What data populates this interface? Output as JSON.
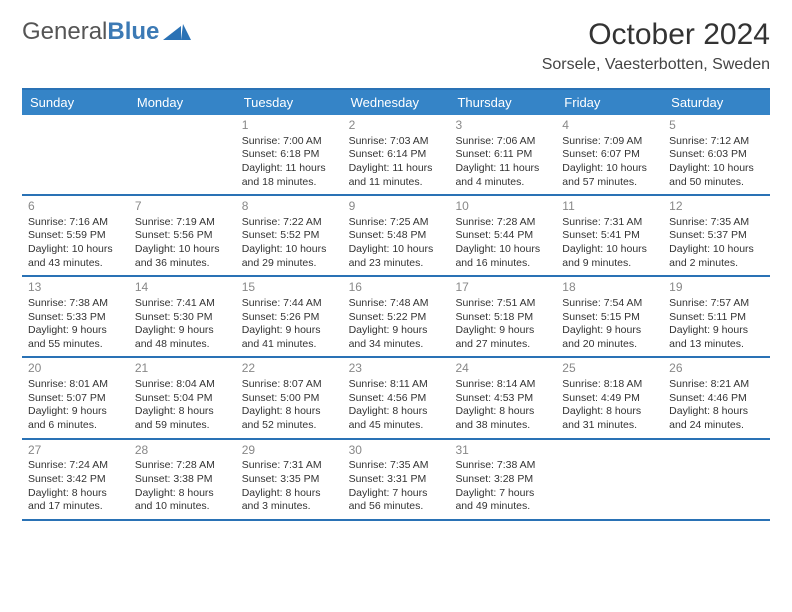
{
  "logo": {
    "part1": "General",
    "part2": "Blue"
  },
  "title": "October 2024",
  "location": "Sorsele, Vaesterbotten, Sweden",
  "colors": {
    "header_bg": "#3584c7",
    "header_border": "#2a72b5",
    "logo_accent": "#3c7ab5"
  },
  "dow": [
    "Sunday",
    "Monday",
    "Tuesday",
    "Wednesday",
    "Thursday",
    "Friday",
    "Saturday"
  ],
  "weeks": [
    [
      null,
      null,
      {
        "n": "1",
        "sr": "Sunrise: 7:00 AM",
        "ss": "Sunset: 6:18 PM",
        "dl": "Daylight: 11 hours and 18 minutes."
      },
      {
        "n": "2",
        "sr": "Sunrise: 7:03 AM",
        "ss": "Sunset: 6:14 PM",
        "dl": "Daylight: 11 hours and 11 minutes."
      },
      {
        "n": "3",
        "sr": "Sunrise: 7:06 AM",
        "ss": "Sunset: 6:11 PM",
        "dl": "Daylight: 11 hours and 4 minutes."
      },
      {
        "n": "4",
        "sr": "Sunrise: 7:09 AM",
        "ss": "Sunset: 6:07 PM",
        "dl": "Daylight: 10 hours and 57 minutes."
      },
      {
        "n": "5",
        "sr": "Sunrise: 7:12 AM",
        "ss": "Sunset: 6:03 PM",
        "dl": "Daylight: 10 hours and 50 minutes."
      }
    ],
    [
      {
        "n": "6",
        "sr": "Sunrise: 7:16 AM",
        "ss": "Sunset: 5:59 PM",
        "dl": "Daylight: 10 hours and 43 minutes."
      },
      {
        "n": "7",
        "sr": "Sunrise: 7:19 AM",
        "ss": "Sunset: 5:56 PM",
        "dl": "Daylight: 10 hours and 36 minutes."
      },
      {
        "n": "8",
        "sr": "Sunrise: 7:22 AM",
        "ss": "Sunset: 5:52 PM",
        "dl": "Daylight: 10 hours and 29 minutes."
      },
      {
        "n": "9",
        "sr": "Sunrise: 7:25 AM",
        "ss": "Sunset: 5:48 PM",
        "dl": "Daylight: 10 hours and 23 minutes."
      },
      {
        "n": "10",
        "sr": "Sunrise: 7:28 AM",
        "ss": "Sunset: 5:44 PM",
        "dl": "Daylight: 10 hours and 16 minutes."
      },
      {
        "n": "11",
        "sr": "Sunrise: 7:31 AM",
        "ss": "Sunset: 5:41 PM",
        "dl": "Daylight: 10 hours and 9 minutes."
      },
      {
        "n": "12",
        "sr": "Sunrise: 7:35 AM",
        "ss": "Sunset: 5:37 PM",
        "dl": "Daylight: 10 hours and 2 minutes."
      }
    ],
    [
      {
        "n": "13",
        "sr": "Sunrise: 7:38 AM",
        "ss": "Sunset: 5:33 PM",
        "dl": "Daylight: 9 hours and 55 minutes."
      },
      {
        "n": "14",
        "sr": "Sunrise: 7:41 AM",
        "ss": "Sunset: 5:30 PM",
        "dl": "Daylight: 9 hours and 48 minutes."
      },
      {
        "n": "15",
        "sr": "Sunrise: 7:44 AM",
        "ss": "Sunset: 5:26 PM",
        "dl": "Daylight: 9 hours and 41 minutes."
      },
      {
        "n": "16",
        "sr": "Sunrise: 7:48 AM",
        "ss": "Sunset: 5:22 PM",
        "dl": "Daylight: 9 hours and 34 minutes."
      },
      {
        "n": "17",
        "sr": "Sunrise: 7:51 AM",
        "ss": "Sunset: 5:18 PM",
        "dl": "Daylight: 9 hours and 27 minutes."
      },
      {
        "n": "18",
        "sr": "Sunrise: 7:54 AM",
        "ss": "Sunset: 5:15 PM",
        "dl": "Daylight: 9 hours and 20 minutes."
      },
      {
        "n": "19",
        "sr": "Sunrise: 7:57 AM",
        "ss": "Sunset: 5:11 PM",
        "dl": "Daylight: 9 hours and 13 minutes."
      }
    ],
    [
      {
        "n": "20",
        "sr": "Sunrise: 8:01 AM",
        "ss": "Sunset: 5:07 PM",
        "dl": "Daylight: 9 hours and 6 minutes."
      },
      {
        "n": "21",
        "sr": "Sunrise: 8:04 AM",
        "ss": "Sunset: 5:04 PM",
        "dl": "Daylight: 8 hours and 59 minutes."
      },
      {
        "n": "22",
        "sr": "Sunrise: 8:07 AM",
        "ss": "Sunset: 5:00 PM",
        "dl": "Daylight: 8 hours and 52 minutes."
      },
      {
        "n": "23",
        "sr": "Sunrise: 8:11 AM",
        "ss": "Sunset: 4:56 PM",
        "dl": "Daylight: 8 hours and 45 minutes."
      },
      {
        "n": "24",
        "sr": "Sunrise: 8:14 AM",
        "ss": "Sunset: 4:53 PM",
        "dl": "Daylight: 8 hours and 38 minutes."
      },
      {
        "n": "25",
        "sr": "Sunrise: 8:18 AM",
        "ss": "Sunset: 4:49 PM",
        "dl": "Daylight: 8 hours and 31 minutes."
      },
      {
        "n": "26",
        "sr": "Sunrise: 8:21 AM",
        "ss": "Sunset: 4:46 PM",
        "dl": "Daylight: 8 hours and 24 minutes."
      }
    ],
    [
      {
        "n": "27",
        "sr": "Sunrise: 7:24 AM",
        "ss": "Sunset: 3:42 PM",
        "dl": "Daylight: 8 hours and 17 minutes."
      },
      {
        "n": "28",
        "sr": "Sunrise: 7:28 AM",
        "ss": "Sunset: 3:38 PM",
        "dl": "Daylight: 8 hours and 10 minutes."
      },
      {
        "n": "29",
        "sr": "Sunrise: 7:31 AM",
        "ss": "Sunset: 3:35 PM",
        "dl": "Daylight: 8 hours and 3 minutes."
      },
      {
        "n": "30",
        "sr": "Sunrise: 7:35 AM",
        "ss": "Sunset: 3:31 PM",
        "dl": "Daylight: 7 hours and 56 minutes."
      },
      {
        "n": "31",
        "sr": "Sunrise: 7:38 AM",
        "ss": "Sunset: 3:28 PM",
        "dl": "Daylight: 7 hours and 49 minutes."
      },
      null,
      null
    ]
  ]
}
